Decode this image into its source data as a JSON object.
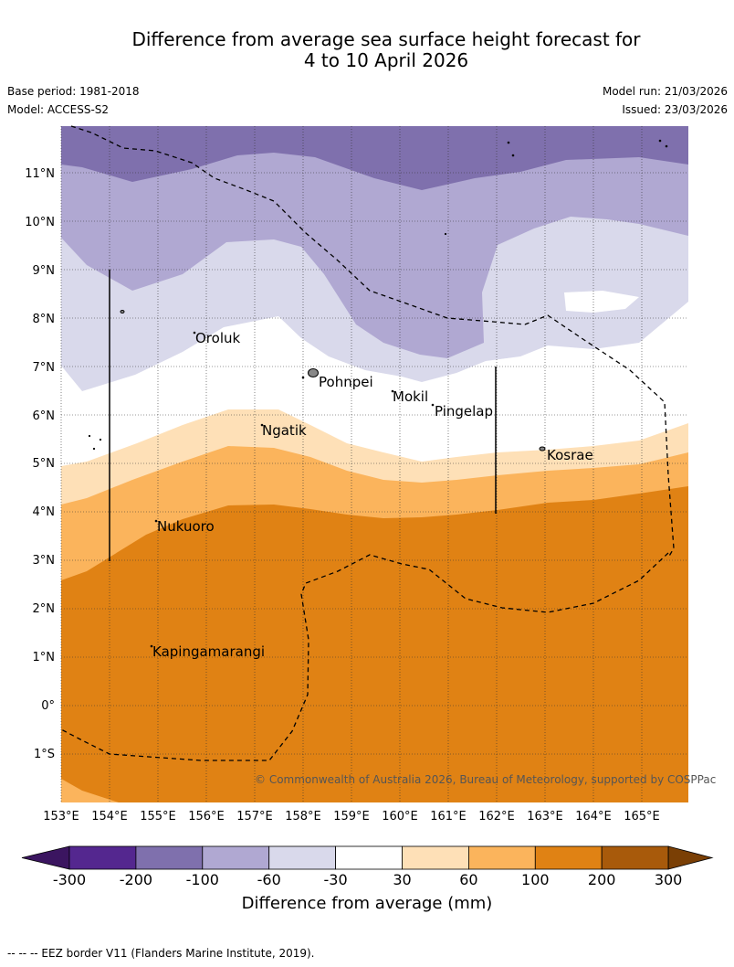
{
  "title_line1": "Difference from average sea surface height forecast for",
  "title_line2": "4 to 10 April 2026",
  "base_period": "Base period: 1981-2018",
  "model": "Model: ACCESS-S2",
  "model_run": "Model run: 21/03/2026",
  "issued": "Issued: 23/03/2026",
  "copyright": "© Commonwealth of Australia 2026, Bureau of Meteorology, supported by COSPPac",
  "lat_labels": [
    "11°N",
    "10°N",
    "9°N",
    "8°N",
    "7°N",
    "6°N",
    "5°N",
    "4°N",
    "3°N",
    "2°N",
    "1°N",
    "0°",
    "1°S"
  ],
  "lon_labels": [
    "153°E",
    "154°E",
    "155°E",
    "156°E",
    "157°E",
    "158°E",
    "159°E",
    "160°E",
    "161°E",
    "162°E",
    "163°E",
    "164°E",
    "165°E"
  ],
  "places": [
    "Oroluk",
    "Pohnpei",
    "Mokil",
    "Pingelap",
    "Ngatik",
    "Kosrae",
    "Nukuoro",
    "Kapingamarangi"
  ],
  "colorbar": {
    "ticks": [
      "-300",
      "-200",
      "-100",
      "-60",
      "-30",
      "30",
      "60",
      "100",
      "200",
      "300"
    ],
    "colors": [
      "#3b1560",
      "#54278f",
      "#7f70ad",
      "#b0a8d2",
      "#d9d9eb",
      "#ffffff",
      "#fee0b7",
      "#fbb45c",
      "#e08214",
      "#a85a0b",
      "#7a3f05"
    ],
    "title": "Difference from average (mm)"
  },
  "footnote": "--  --  -- EEZ border V11 (Flanders Marine Institute, 2019)."
}
